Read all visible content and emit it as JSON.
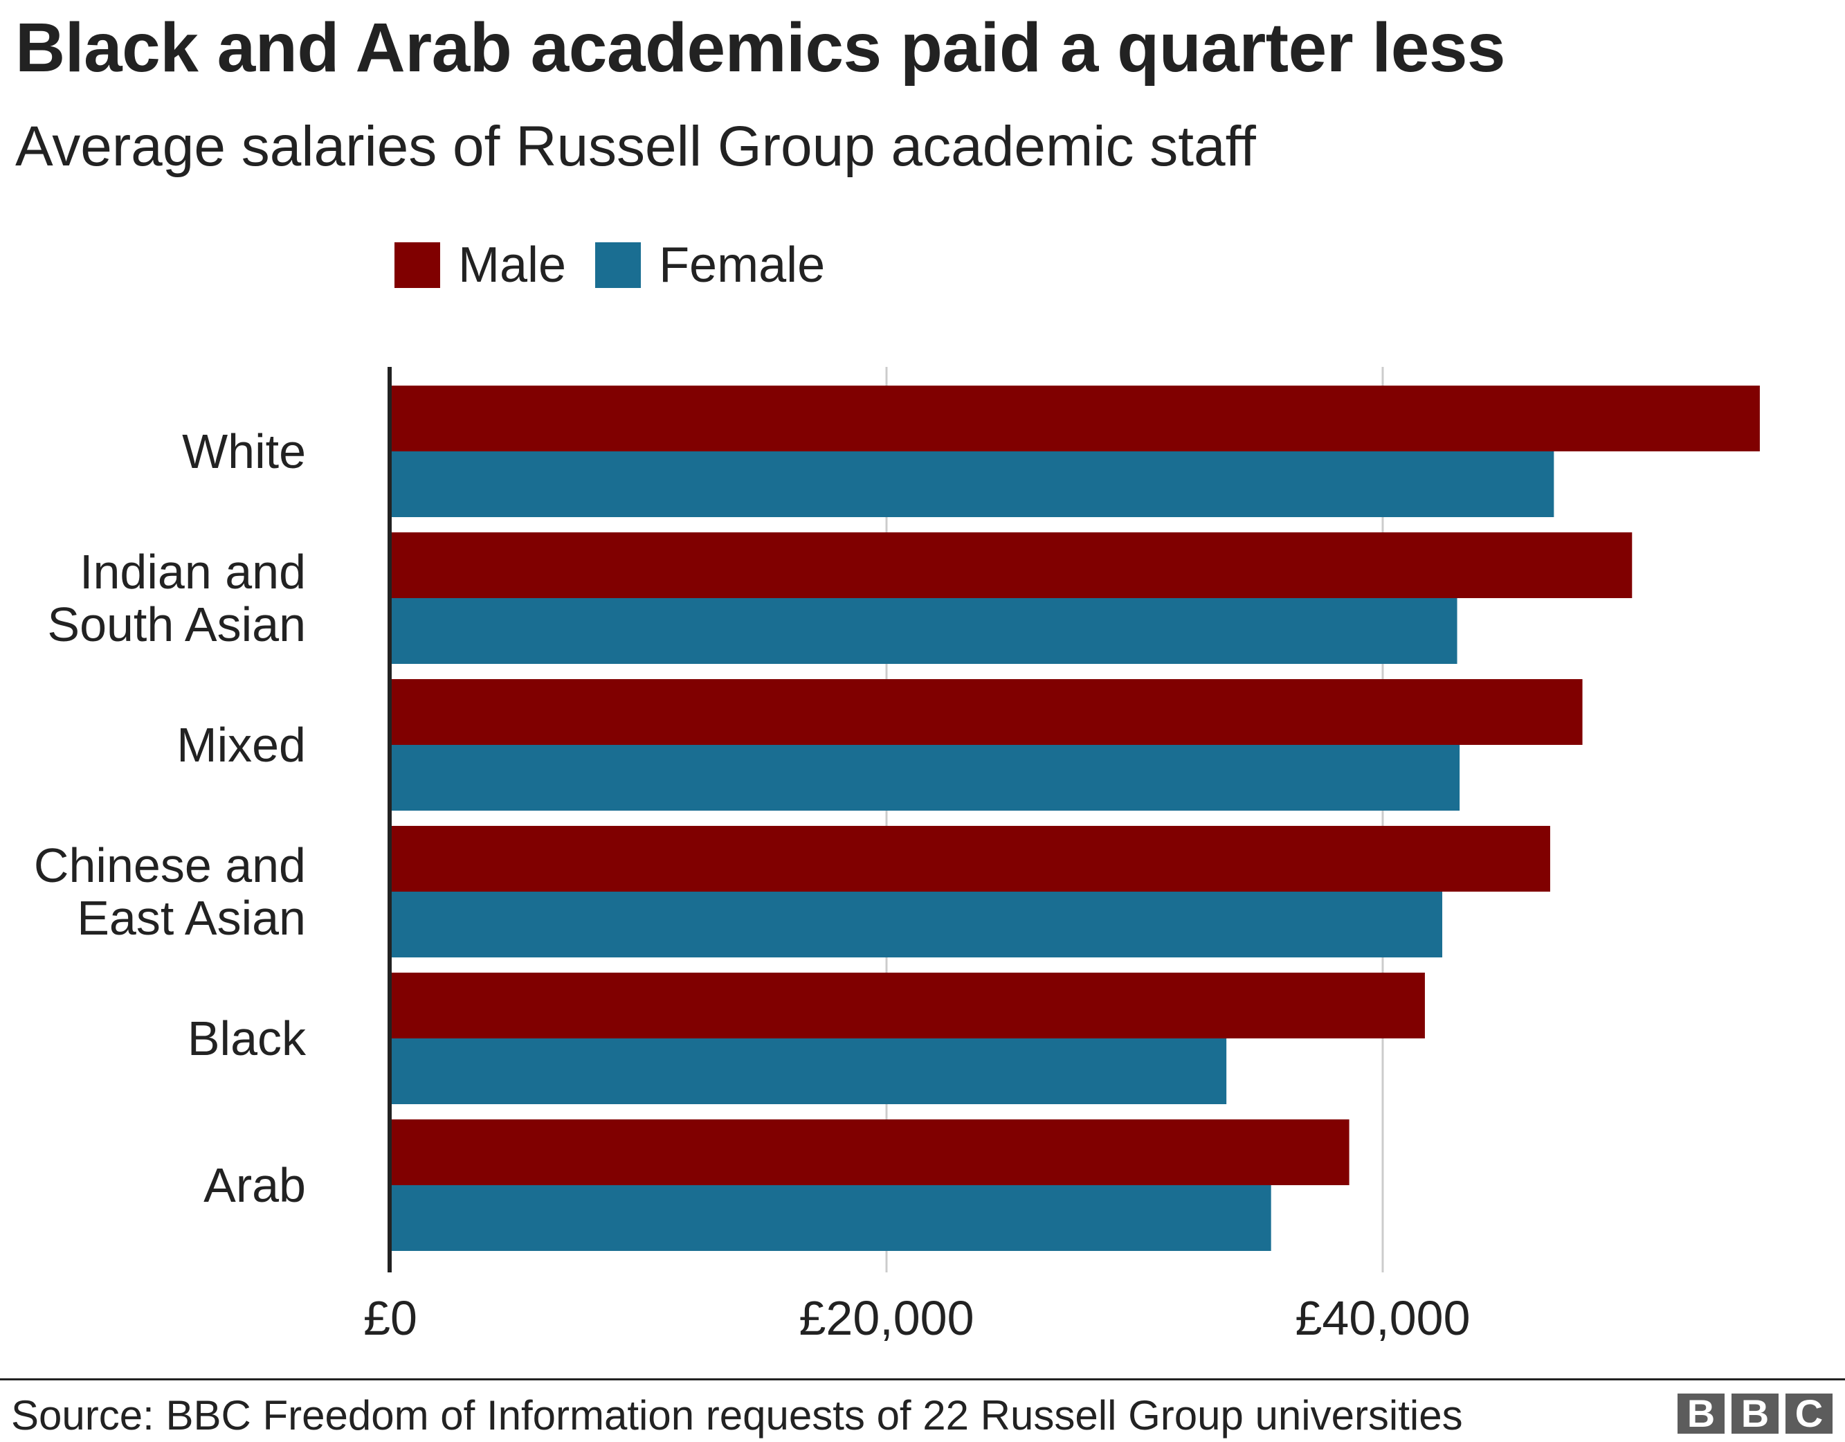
{
  "title": "Black and Arab academics paid a quarter less",
  "subtitle": "Average salaries of Russell Group academic staff",
  "source": "Source: BBC Freedom of Information requests of 22 Russell Group universities",
  "logo": {
    "letters": [
      "B",
      "B",
      "C"
    ]
  },
  "colors": {
    "male": "#800000",
    "female": "#1a6e92",
    "grid": "#cccccc",
    "axis": "#222222"
  },
  "legend": {
    "placement": "top",
    "items": [
      "Male",
      "Female"
    ]
  },
  "chart_data": {
    "type": "bar",
    "orientation": "horizontal",
    "categories": [
      [
        "White"
      ],
      [
        "Indian and",
        "South Asian"
      ],
      [
        "Mixed"
      ],
      [
        "Chinese and",
        "East Asian"
      ],
      [
        "Black"
      ],
      [
        "Arab"
      ]
    ],
    "series": [
      {
        "name": "Male",
        "values": [
          55200,
          50050,
          48050,
          46750,
          41700,
          38650
        ]
      },
      {
        "name": "Female",
        "values": [
          46900,
          43000,
          43100,
          42400,
          33700,
          35500
        ]
      }
    ],
    "xlim": [
      0,
      56000
    ],
    "xticks": [
      0,
      20000,
      40000
    ],
    "xtick_labels": [
      "£0",
      "£20,000",
      "£40,000"
    ],
    "xlabel": "",
    "ylabel": "",
    "grid": true
  }
}
